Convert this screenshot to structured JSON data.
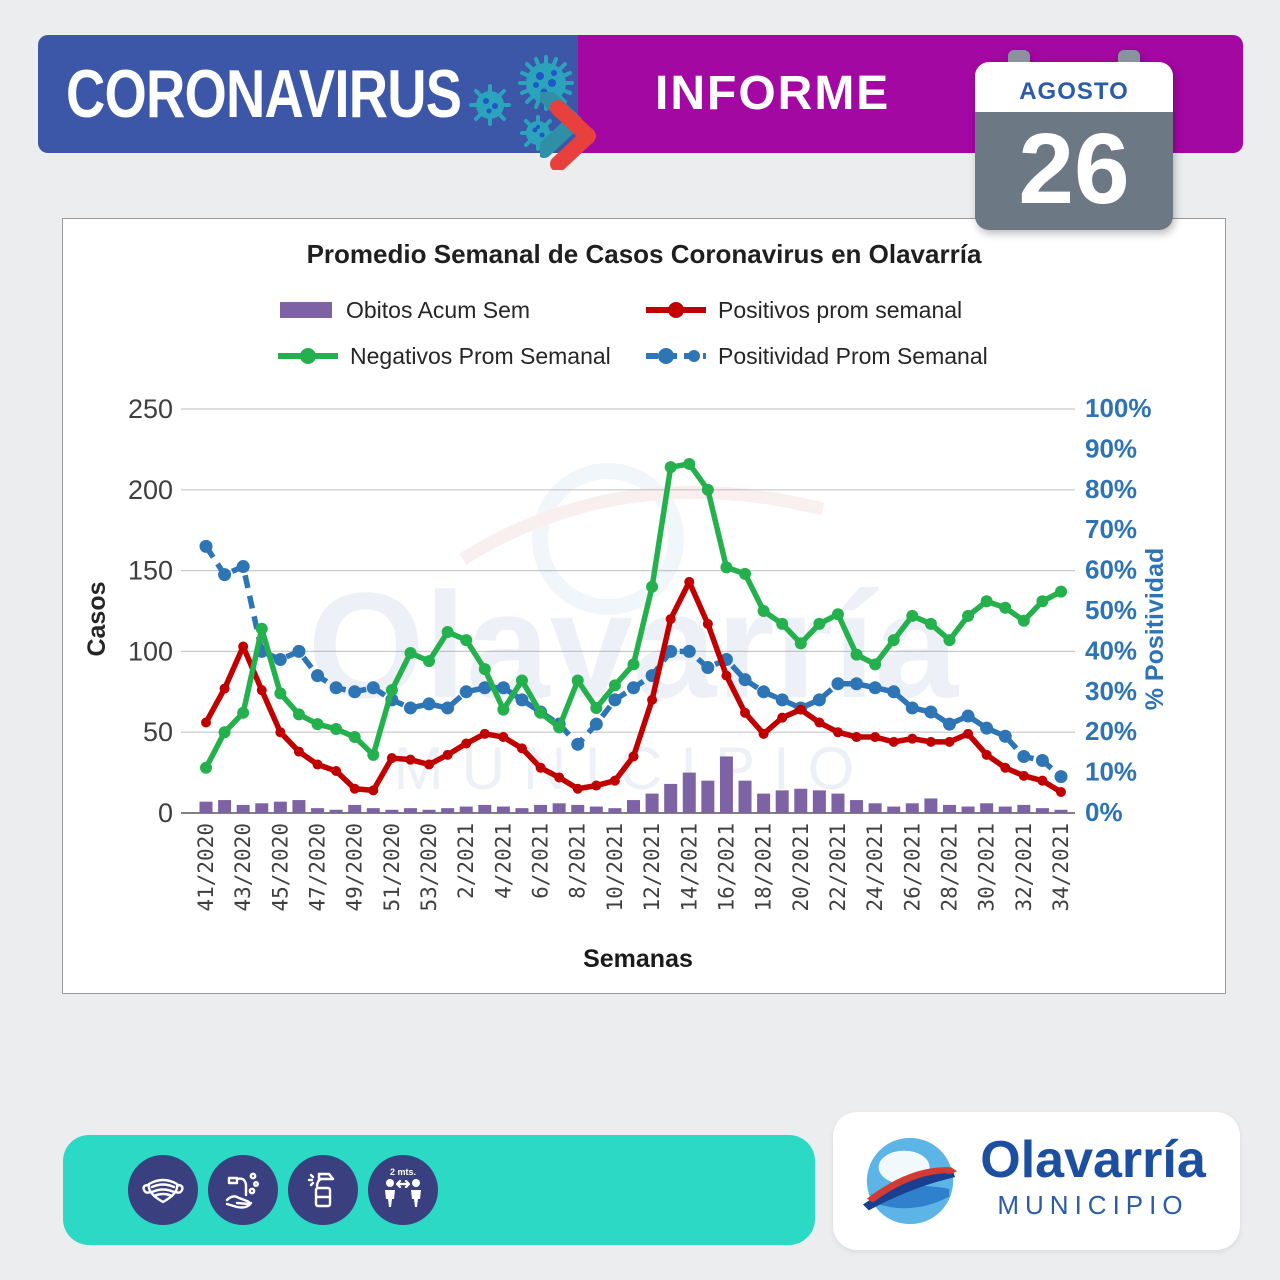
{
  "header": {
    "app_title": "CORONAVIRUS",
    "report_label": "INFORME",
    "calendar": {
      "month": "AGOSTO",
      "day": "26"
    },
    "colors": {
      "band_blue": "#3D57A8",
      "band_purple": "#A308A2",
      "calendar_body": "#6C7884",
      "calendar_tabs": "#8A939D",
      "month_text": "#2C5BA8",
      "virus": "#2BA3BC",
      "virus_dots": "#1E57C8",
      "chevron_teal": "#2E8FA6",
      "chevron_red": "#E8403C"
    }
  },
  "chart_data": {
    "type": "combo",
    "title": "Promedio Semanal de Casos Coronavirus en Olavarría",
    "xlabel": "Semanas",
    "ylabel_left": "Casos",
    "ylabel_right": "% Positividad",
    "grid": true,
    "legend_position": "top",
    "ylim_left": [
      0,
      250
    ],
    "y_left_ticks": [
      0,
      50,
      100,
      150,
      200,
      250
    ],
    "ylim_right_pct": [
      0,
      100
    ],
    "y_right_tick_step_pct": 10,
    "x_tick_every": 2,
    "x_labels": [
      "41/2020",
      "42/2020",
      "43/2020",
      "44/2020",
      "45/2020",
      "46/2020",
      "47/2020",
      "48/2020",
      "49/2020",
      "50/2020",
      "51/2020",
      "52/2020",
      "53/2020",
      "1/2021",
      "2/2021",
      "3/2021",
      "4/2021",
      "5/2021",
      "6/2021",
      "7/2021",
      "8/2021",
      "9/2021",
      "10/2021",
      "11/2021",
      "12/2021",
      "13/2021",
      "14/2021",
      "15/2021",
      "16/2021",
      "17/2021",
      "18/2021",
      "19/2021",
      "20/2021",
      "21/2021",
      "22/2021",
      "23/2021",
      "24/2021",
      "25/2021",
      "26/2021",
      "27/2021",
      "28/2021",
      "29/2021",
      "30/2021",
      "31/2021",
      "32/2021",
      "33/2021",
      "34/2021"
    ],
    "series": [
      {
        "name": "Obitos Acum Sem",
        "type": "bar",
        "axis": "left",
        "color": "#7E63A4",
        "values": [
          7,
          8,
          5,
          6,
          7,
          8,
          3,
          2,
          5,
          3,
          2,
          3,
          2,
          3,
          4,
          5,
          4,
          3,
          5,
          6,
          5,
          4,
          3,
          8,
          12,
          18,
          25,
          20,
          35,
          20,
          12,
          14,
          15,
          14,
          12,
          8,
          6,
          4,
          6,
          9,
          5,
          4,
          6,
          4,
          5,
          3,
          2
        ]
      },
      {
        "name": "Positivos prom semanal",
        "type": "line",
        "axis": "left",
        "color": "#C00000",
        "values": [
          56,
          77,
          103,
          76,
          50,
          38,
          30,
          26,
          15,
          14,
          34,
          33,
          30,
          36,
          43,
          49,
          47,
          40,
          28,
          22,
          15,
          17,
          20,
          35,
          70,
          120,
          143,
          117,
          85,
          62,
          49,
          59,
          64,
          56,
          50,
          47,
          47,
          44,
          46,
          44,
          44,
          49,
          36,
          28,
          23,
          20,
          13
        ]
      },
      {
        "name": "Negativos Prom Semanal",
        "type": "line",
        "axis": "left",
        "color": "#24B14D",
        "values": [
          28,
          50,
          62,
          114,
          74,
          61,
          55,
          52,
          47,
          36,
          76,
          99,
          94,
          112,
          107,
          89,
          64,
          82,
          62,
          53,
          82,
          65,
          79,
          92,
          140,
          214,
          216,
          200,
          152,
          148,
          125,
          117,
          105,
          117,
          123,
          98,
          92,
          107,
          122,
          117,
          107,
          122,
          131,
          127,
          119,
          131,
          137
        ]
      },
      {
        "name": "Positividad Prom Semanal",
        "type": "line_dashed",
        "axis": "right",
        "color": "#2E75B6",
        "values_pct": [
          66,
          59,
          61,
          40,
          38,
          40,
          34,
          31,
          30,
          31,
          28,
          26,
          27,
          26,
          30,
          31,
          31,
          28,
          25,
          22,
          17,
          22,
          28,
          31,
          34,
          40,
          40,
          36,
          38,
          33,
          30,
          28,
          26,
          28,
          32,
          32,
          31,
          30,
          26,
          25,
          22,
          24,
          21,
          19,
          14,
          13,
          9
        ]
      }
    ],
    "axis_colors": {
      "left_text": "#3F3F3F",
      "right_text": "#2E74B5",
      "grid": "#C9C9C9",
      "baseline": "#808080",
      "tick_text": "#404040",
      "axis_title": "#262626"
    }
  },
  "watermark": {
    "text": "Olavarría",
    "subtext": "MUNICIPIO"
  },
  "footer": {
    "band_color": "#2BD9C4",
    "icon_circle_color": "#3A3F80",
    "icons": [
      "face-mask",
      "hand-washing",
      "disinfectant-spray",
      "social-distance"
    ],
    "distance_label": "2 mts.",
    "logo": {
      "name": "Olavarría",
      "subtitle": "MUNICIPIO",
      "name_color": "#1D4FA1"
    }
  }
}
